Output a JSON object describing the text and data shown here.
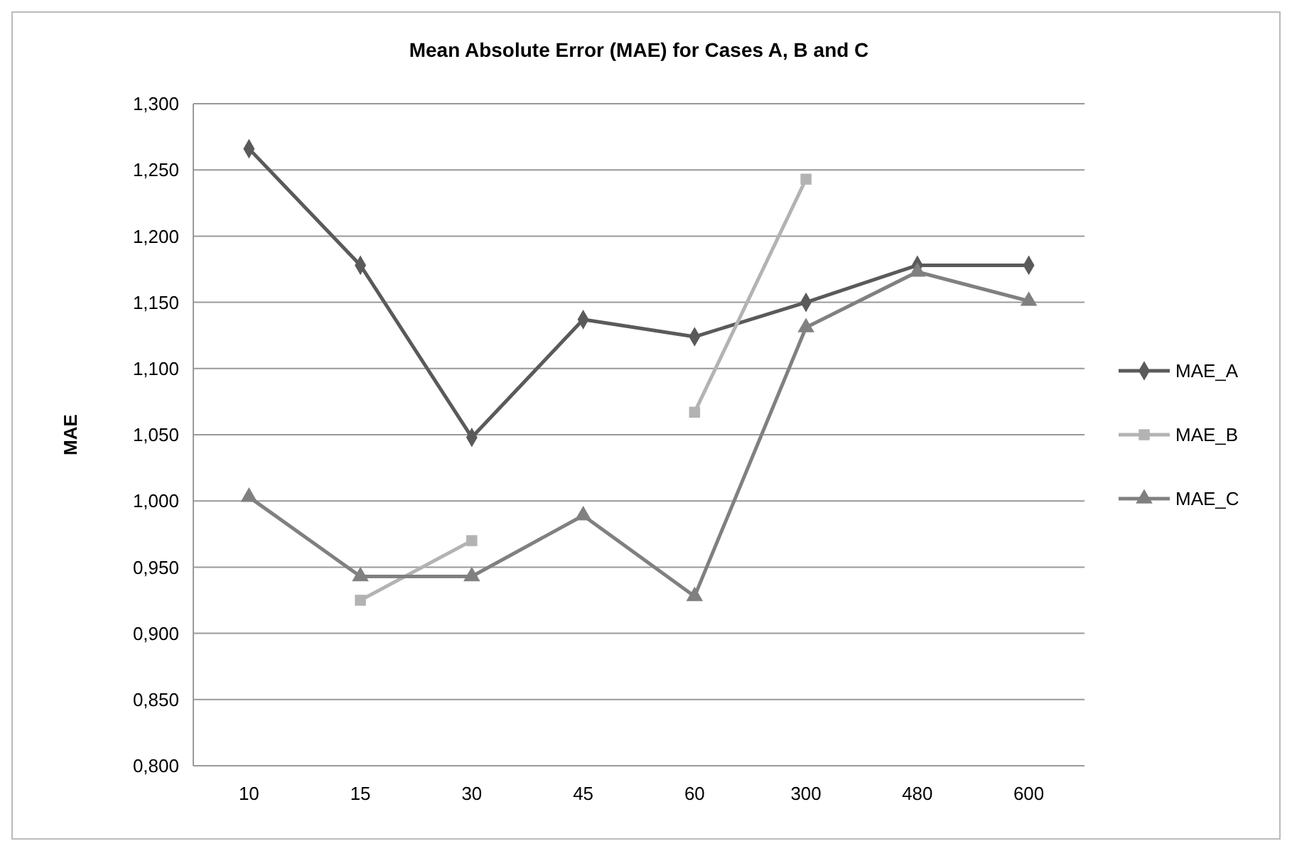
{
  "chart_data": {
    "type": "line",
    "title": "Mean Absolute Error (MAE) for Cases A, B and C",
    "ylabel": "MAE",
    "categories": [
      "10",
      "15",
      "30",
      "45",
      "60",
      "300",
      "480",
      "600"
    ],
    "series": [
      {
        "name": "MAE_A",
        "color": "#5a5a5a",
        "marker": "diamond",
        "values": [
          1.266,
          1.178,
          1.048,
          1.137,
          1.124,
          1.15,
          1.178,
          1.178
        ]
      },
      {
        "name": "MAE_B",
        "color": "#b3b3b3",
        "marker": "square",
        "values": [
          null,
          0.925,
          0.97,
          null,
          1.067,
          1.243,
          null,
          null
        ]
      },
      {
        "name": "MAE_C",
        "color": "#808080",
        "marker": "triangle",
        "values": [
          1.003,
          0.943,
          0.943,
          0.989,
          0.928,
          1.131,
          1.173,
          1.151
        ]
      }
    ],
    "ylim": [
      0.8,
      1.3
    ],
    "yticks": [
      {
        "value": 0.8,
        "label": "0,800"
      },
      {
        "value": 0.85,
        "label": "0,850"
      },
      {
        "value": 0.9,
        "label": "0,900"
      },
      {
        "value": 0.95,
        "label": "0,950"
      },
      {
        "value": 1.0,
        "label": "1,000"
      },
      {
        "value": 1.05,
        "label": "1,050"
      },
      {
        "value": 1.1,
        "label": "1,100"
      },
      {
        "value": 1.15,
        "label": "1,150"
      },
      {
        "value": 1.2,
        "label": "1,200"
      },
      {
        "value": 1.25,
        "label": "1,250"
      },
      {
        "value": 1.3,
        "label": "1,300"
      }
    ],
    "grid": "y",
    "legend": "right",
    "line_style": "solid"
  }
}
